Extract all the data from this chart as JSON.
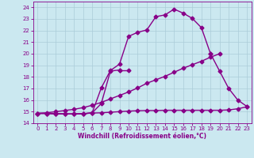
{
  "xlabel": "Windchill (Refroidissement éolien,°C)",
  "xlim": [
    -0.5,
    23.5
  ],
  "ylim": [
    14,
    24.5
  ],
  "xticks": [
    0,
    1,
    2,
    3,
    4,
    5,
    6,
    7,
    8,
    9,
    10,
    11,
    12,
    13,
    14,
    15,
    16,
    17,
    18,
    19,
    20,
    21,
    22,
    23
  ],
  "yticks": [
    14,
    15,
    16,
    17,
    18,
    19,
    20,
    21,
    22,
    23,
    24
  ],
  "bg_color": "#cbe8f0",
  "line_color": "#880088",
  "grid_color": "#aaccd8",
  "curves": [
    {
      "x": [
        0,
        1,
        2,
        3,
        4,
        5,
        6,
        7,
        8,
        9,
        10,
        11,
        12,
        13,
        14,
        15,
        16,
        17,
        18,
        19
      ],
      "y": [
        14.85,
        14.85,
        14.82,
        14.8,
        14.8,
        14.82,
        14.9,
        17.05,
        18.55,
        19.1,
        21.5,
        21.85,
        22.05,
        23.2,
        23.35,
        23.85,
        23.5,
        23.05,
        22.25,
        20.0
      ],
      "marker": "D",
      "markersize": 2.5,
      "linewidth": 1.0
    },
    {
      "x": [
        0,
        1,
        2,
        3,
        4,
        5,
        6,
        7,
        8,
        9
      ],
      "y": [
        14.85,
        14.85,
        14.82,
        14.8,
        14.8,
        14.82,
        14.9,
        15.7,
        18.5,
        18.6
      ],
      "marker": "D",
      "markersize": 2.5,
      "linewidth": 1.0
    },
    {
      "x": [
        9,
        10
      ],
      "y": [
        18.6,
        18.6
      ],
      "marker": "D",
      "markersize": 2.5,
      "linewidth": 1.0
    },
    {
      "x": [
        19,
        20,
        21,
        22,
        23
      ],
      "y": [
        20.0,
        18.5,
        17.0,
        16.0,
        15.45
      ],
      "marker": "D",
      "markersize": 2.5,
      "linewidth": 1.0
    },
    {
      "x": [
        0,
        1,
        2,
        3,
        4,
        5,
        6,
        7,
        8,
        9,
        10,
        11,
        12,
        13,
        14,
        15,
        16,
        17,
        18,
        19,
        20,
        21,
        22,
        23
      ],
      "y": [
        14.85,
        14.9,
        15.0,
        15.1,
        15.2,
        15.35,
        15.55,
        15.8,
        16.1,
        16.4,
        16.7,
        17.05,
        17.45,
        17.75,
        18.05,
        18.4,
        18.75,
        19.05,
        19.35,
        19.7,
        20.0,
        null,
        null,
        null
      ],
      "marker": "D",
      "markersize": 2.5,
      "linewidth": 1.0
    },
    {
      "x": [
        0,
        1,
        2,
        3,
        4,
        5,
        6,
        7,
        8,
        9,
        10,
        11,
        12,
        13,
        14,
        15,
        16,
        17,
        18,
        19,
        20,
        21,
        22,
        23
      ],
      "y": [
        14.85,
        14.85,
        14.82,
        14.8,
        14.8,
        14.82,
        14.88,
        14.9,
        14.95,
        15.0,
        15.05,
        15.08,
        15.1,
        15.1,
        15.12,
        15.12,
        15.12,
        15.12,
        15.12,
        15.12,
        15.12,
        15.15,
        15.25,
        15.42
      ],
      "marker": "D",
      "markersize": 2.5,
      "linewidth": 1.0
    }
  ]
}
